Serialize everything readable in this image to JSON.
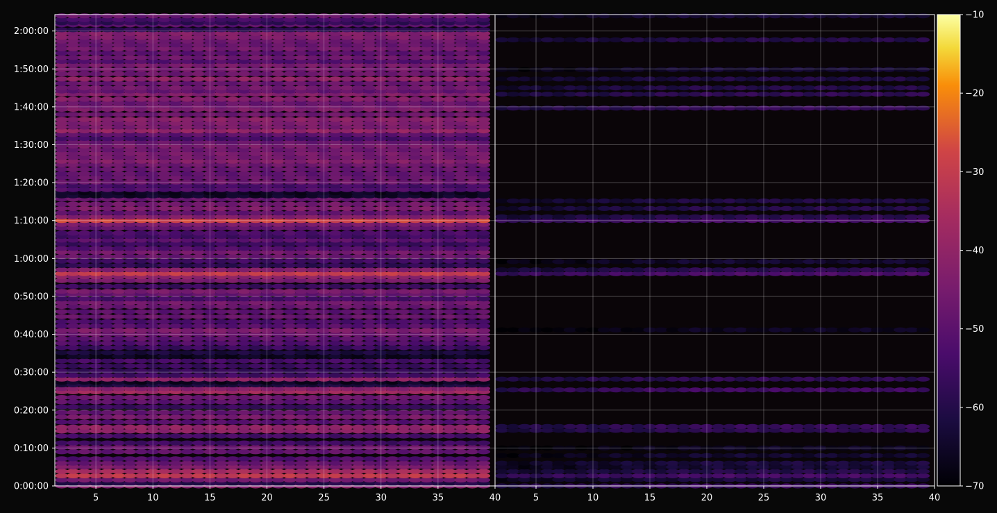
{
  "chart_data": {
    "type": "heatmap",
    "panels": [
      {
        "name": "",
        "xlim": [
          1.4,
          40
        ]
      },
      {
        "name": "",
        "xlim": [
          1.4,
          40
        ]
      }
    ],
    "x_ticks": [
      "5",
      "10",
      "15",
      "20",
      "25",
      "30",
      "35",
      "40"
    ],
    "y_ticks": [
      "0:00:00",
      "0:10:00",
      "0:20:00",
      "0:30:00",
      "0:40:00",
      "0:50:00",
      "1:00:00",
      "1:10:00",
      "1:20:00",
      "1:30:00",
      "1:40:00",
      "1:50:00",
      "2:00:00"
    ],
    "ylim_seconds": [
      0,
      7460
    ],
    "colorbar": {
      "colormap": "inferno",
      "range": [
        -70,
        -10
      ],
      "ticks": [
        "−10",
        "−20",
        "−30",
        "−40",
        "−50",
        "−60",
        "−70"
      ]
    },
    "grid": true,
    "left_panel_row_levels": [
      {
        "t": 0,
        "v": -43
      },
      {
        "t": 40,
        "v": -60
      },
      {
        "t": 95,
        "v": -46
      },
      {
        "t": 160,
        "v": -31
      },
      {
        "t": 230,
        "v": -36
      },
      {
        "t": 300,
        "v": -44
      },
      {
        "t": 360,
        "v": -48
      },
      {
        "t": 430,
        "v": -52
      },
      {
        "t": 540,
        "v": -49
      },
      {
        "t": 610,
        "v": -47
      },
      {
        "t": 680,
        "v": -55
      },
      {
        "t": 790,
        "v": -54
      },
      {
        "t": 870,
        "v": -41
      },
      {
        "t": 930,
        "v": -40
      },
      {
        "t": 1010,
        "v": -51
      },
      {
        "t": 1090,
        "v": -45
      },
      {
        "t": 1160,
        "v": -49
      },
      {
        "t": 1250,
        "v": -56
      },
      {
        "t": 1330,
        "v": -50
      },
      {
        "t": 1400,
        "v": -47
      },
      {
        "t": 1490,
        "v": -37
      },
      {
        "t": 1540,
        "v": -42
      },
      {
        "t": 1600,
        "v": -62
      },
      {
        "t": 1640,
        "v": -66
      },
      {
        "t": 1690,
        "v": -41
      },
      {
        "t": 1750,
        "v": -55
      },
      {
        "t": 1820,
        "v": -57
      },
      {
        "t": 1900,
        "v": -56
      },
      {
        "t": 1980,
        "v": -54
      },
      {
        "t": 2050,
        "v": -66
      },
      {
        "t": 2110,
        "v": -62
      },
      {
        "t": 2190,
        "v": -56
      },
      {
        "t": 2260,
        "v": -52
      },
      {
        "t": 2330,
        "v": -50
      },
      {
        "t": 2400,
        "v": -47
      },
      {
        "t": 2460,
        "v": -44
      },
      {
        "t": 2530,
        "v": -51
      },
      {
        "t": 2600,
        "v": -53
      },
      {
        "t": 2680,
        "v": -48
      },
      {
        "t": 2760,
        "v": -50
      },
      {
        "t": 2840,
        "v": -48
      },
      {
        "t": 2900,
        "v": -46
      },
      {
        "t": 2960,
        "v": -54
      },
      {
        "t": 3030,
        "v": -49
      },
      {
        "t": 3080,
        "v": -45
      },
      {
        "t": 3160,
        "v": -56
      },
      {
        "t": 3250,
        "v": -45
      },
      {
        "t": 3310,
        "v": -41
      },
      {
        "t": 3360,
        "v": -30
      },
      {
        "t": 3420,
        "v": -43
      },
      {
        "t": 3490,
        "v": -58
      },
      {
        "t": 3560,
        "v": -55
      },
      {
        "t": 3630,
        "v": -48
      },
      {
        "t": 3700,
        "v": -46
      },
      {
        "t": 3760,
        "v": -52
      },
      {
        "t": 3830,
        "v": -56
      },
      {
        "t": 3890,
        "v": -50
      },
      {
        "t": 3950,
        "v": -55
      },
      {
        "t": 4000,
        "v": -53
      },
      {
        "t": 4080,
        "v": -49
      },
      {
        "t": 4140,
        "v": -45
      },
      {
        "t": 4200,
        "v": -28
      },
      {
        "t": 4260,
        "v": -43
      },
      {
        "t": 4320,
        "v": -49
      },
      {
        "t": 4390,
        "v": -44
      },
      {
        "t": 4460,
        "v": -46
      },
      {
        "t": 4540,
        "v": -48
      },
      {
        "t": 4590,
        "v": -65
      },
      {
        "t": 4640,
        "v": -66
      },
      {
        "t": 4690,
        "v": -52
      },
      {
        "t": 4750,
        "v": -54
      },
      {
        "t": 4810,
        "v": -47
      },
      {
        "t": 4880,
        "v": -48
      },
      {
        "t": 4940,
        "v": -49
      },
      {
        "t": 5010,
        "v": -48
      },
      {
        "t": 5080,
        "v": -47
      },
      {
        "t": 5140,
        "v": -43
      },
      {
        "t": 5200,
        "v": -46
      },
      {
        "t": 5260,
        "v": -45
      },
      {
        "t": 5320,
        "v": -47
      },
      {
        "t": 5380,
        "v": -45
      },
      {
        "t": 5440,
        "v": -48
      },
      {
        "t": 5500,
        "v": -54
      },
      {
        "t": 5560,
        "v": -50
      },
      {
        "t": 5620,
        "v": -40
      },
      {
        "t": 5680,
        "v": -45
      },
      {
        "t": 5740,
        "v": -44
      },
      {
        "t": 5800,
        "v": -42
      },
      {
        "t": 5880,
        "v": -47
      },
      {
        "t": 5960,
        "v": -44
      },
      {
        "t": 6010,
        "v": -46
      },
      {
        "t": 6060,
        "v": -48
      },
      {
        "t": 6120,
        "v": -43
      },
      {
        "t": 6200,
        "v": -43
      },
      {
        "t": 6250,
        "v": -49
      },
      {
        "t": 6300,
        "v": -46
      },
      {
        "t": 6370,
        "v": -48
      },
      {
        "t": 6440,
        "v": -41
      },
      {
        "t": 6520,
        "v": -47
      },
      {
        "t": 6590,
        "v": -46
      },
      {
        "t": 6660,
        "v": -45
      },
      {
        "t": 6720,
        "v": -52
      },
      {
        "t": 6780,
        "v": -47
      },
      {
        "t": 6850,
        "v": -50
      },
      {
        "t": 6920,
        "v": -46
      },
      {
        "t": 6980,
        "v": -48
      },
      {
        "t": 7040,
        "v": -47
      },
      {
        "t": 7100,
        "v": -44
      },
      {
        "t": 7160,
        "v": -43
      },
      {
        "t": 7220,
        "v": -58
      },
      {
        "t": 7300,
        "v": -50
      },
      {
        "t": 7330,
        "v": -58
      },
      {
        "t": 7380,
        "v": -54
      },
      {
        "t": 7440,
        "v": -48
      }
    ],
    "right_panel_row_levels": [
      {
        "t": 0,
        "v": -56
      },
      {
        "t": 100,
        "v": -62
      },
      {
        "t": 160,
        "v": -54
      },
      {
        "t": 230,
        "v": -60
      },
      {
        "t": 300,
        "v": -63
      },
      {
        "t": 360,
        "v": -62
      },
      {
        "t": 480,
        "v": -64
      },
      {
        "t": 600,
        "v": -66
      },
      {
        "t": 880,
        "v": -58
      },
      {
        "t": 940,
        "v": -57
      },
      {
        "t": 1520,
        "v": -55
      },
      {
        "t": 1690,
        "v": -58
      },
      {
        "t": 2470,
        "v": -66
      },
      {
        "t": 3360,
        "v": -53
      },
      {
        "t": 3420,
        "v": -59
      },
      {
        "t": 3550,
        "v": -64
      },
      {
        "t": 4200,
        "v": -54
      },
      {
        "t": 4260,
        "v": -59
      },
      {
        "t": 4390,
        "v": -60
      },
      {
        "t": 4510,
        "v": -61
      },
      {
        "t": 5980,
        "v": -57
      },
      {
        "t": 6200,
        "v": -58
      },
      {
        "t": 6300,
        "v": -60
      },
      {
        "t": 6440,
        "v": -61
      },
      {
        "t": 6590,
        "v": -64
      },
      {
        "t": 7060,
        "v": -60
      },
      {
        "t": 7440,
        "v": -63
      }
    ]
  }
}
